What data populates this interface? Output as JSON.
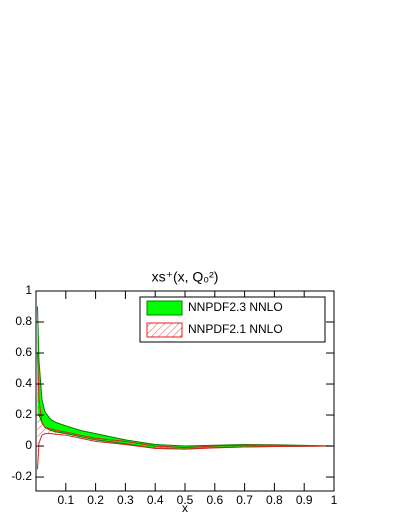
{
  "chart_data": {
    "type": "band",
    "title": "xs⁺(x, Q₀²)",
    "xlabel": "x",
    "x": [
      0.005,
      0.01,
      0.02,
      0.03,
      0.05,
      0.07,
      0.1,
      0.15,
      0.2,
      0.3,
      0.4,
      0.5,
      0.6,
      0.7,
      0.8,
      0.9,
      1
    ],
    "series": [
      {
        "name": "NNPDF2.3 NNLO",
        "color": "#00ff00",
        "edge": "#008000",
        "style": "solid",
        "upper": [
          0.9,
          0.55,
          0.3,
          0.22,
          0.17,
          0.15,
          0.13,
          0.1,
          0.08,
          0.04,
          0.01,
          0.0,
          0.005,
          0.01,
          0.008,
          0.004,
          0
        ],
        "lower": [
          0.2,
          0.2,
          0.15,
          0.12,
          0.1,
          0.09,
          0.08,
          0.06,
          0.04,
          0.015,
          -0.015,
          -0.02,
          -0.01,
          -0.005,
          -0.003,
          -0.001,
          0
        ]
      },
      {
        "name": "NNPDF2.1 NNLO",
        "color": "#e02020",
        "edge": "#e02020",
        "style": "hatch",
        "upper": [
          0.6,
          0.3,
          0.15,
          0.12,
          0.11,
          0.1,
          0.09,
          0.07,
          0.05,
          0.03,
          0.0,
          -0.01,
          0.0,
          0.005,
          0.005,
          0.002,
          0
        ],
        "lower": [
          -0.15,
          0.02,
          0.07,
          0.08,
          0.08,
          0.075,
          0.07,
          0.05,
          0.03,
          0.01,
          -0.015,
          -0.02,
          -0.012,
          -0.006,
          -0.003,
          -0.001,
          0
        ]
      }
    ],
    "xlim": [
      0,
      1
    ],
    "xticks": [
      0.1,
      0.2,
      0.3,
      0.4,
      0.5,
      0.6,
      0.7,
      0.8,
      0.9,
      1
    ],
    "ylim": [
      -0.29,
      1
    ],
    "yticks": [
      -0.2,
      0,
      0.2,
      0.4,
      0.6,
      0.8,
      1
    ]
  }
}
